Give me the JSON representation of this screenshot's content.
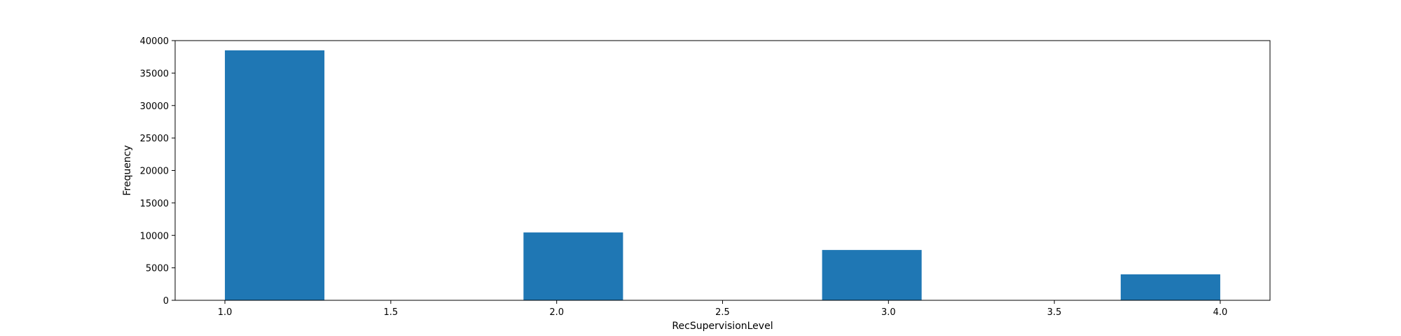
{
  "chart_data": {
    "type": "bar",
    "title": "",
    "xlabel": "RecSupervisionLevel",
    "ylabel": "Frequency",
    "bins": [
      {
        "start": 1.0,
        "end": 1.3,
        "value": 38500
      },
      {
        "start": 1.3,
        "end": 1.6,
        "value": 0
      },
      {
        "start": 1.6,
        "end": 1.9,
        "value": 0
      },
      {
        "start": 1.9,
        "end": 2.2,
        "value": 10450
      },
      {
        "start": 2.2,
        "end": 2.5,
        "value": 0
      },
      {
        "start": 2.5,
        "end": 2.8,
        "value": 0
      },
      {
        "start": 2.8,
        "end": 3.1,
        "value": 7750
      },
      {
        "start": 3.1,
        "end": 3.4,
        "value": 0
      },
      {
        "start": 3.4,
        "end": 3.7,
        "value": 0
      },
      {
        "start": 3.7,
        "end": 4.0,
        "value": 4000
      }
    ],
    "xlim": [
      0.85,
      4.15
    ],
    "ylim": [
      0,
      40000
    ],
    "xticks": [
      1.0,
      1.5,
      2.0,
      2.5,
      3.0,
      3.5,
      4.0
    ],
    "xtick_labels": [
      "1.0",
      "1.5",
      "2.0",
      "2.5",
      "3.0",
      "3.5",
      "4.0"
    ],
    "yticks": [
      0,
      5000,
      10000,
      15000,
      20000,
      25000,
      30000,
      35000,
      40000
    ],
    "ytick_labels": [
      "0",
      "5000",
      "10000",
      "15000",
      "20000",
      "25000",
      "30000",
      "35000",
      "40000"
    ],
    "grid": false,
    "legend": "none",
    "colors": {
      "bar": "#1f77b4",
      "axes": "#000000"
    }
  }
}
